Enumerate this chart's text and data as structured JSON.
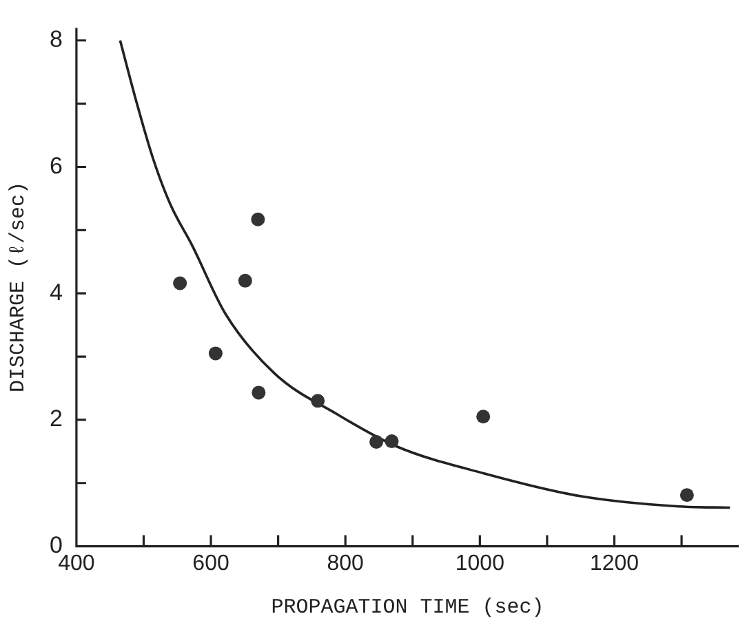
{
  "chart_data": {
    "type": "scatter",
    "xlabel": "PROPAGATION TIME (sec)",
    "ylabel": "DISCHARGE (ℓ/sec)",
    "xlim": [
      400,
      1385
    ],
    "ylim": [
      0,
      8.2
    ],
    "xticks": [
      400,
      {
        "value": 500,
        "label": null
      },
      600,
      {
        "value": 700,
        "label": null
      },
      800,
      {
        "value": 900,
        "label": null
      },
      1000,
      {
        "value": 1100,
        "label": null
      },
      1200,
      {
        "value": 1300,
        "label": null
      }
    ],
    "yticks": [
      0,
      {
        "value": 1,
        "label": null
      },
      2,
      {
        "value": 3,
        "label": null
      },
      4,
      {
        "value": 5,
        "label": null
      },
      6,
      {
        "value": 7,
        "label": null
      },
      8
    ],
    "series": [
      {
        "color": "#333333",
        "marker": "circle",
        "x": [
          554,
          607,
          651,
          670,
          671,
          759,
          846,
          869,
          1005,
          1308
        ],
        "values": [
          4.16,
          3.05,
          4.2,
          5.17,
          2.43,
          2.3,
          1.65,
          1.66,
          2.05,
          0.81
        ]
      },
      {
        "type": "line",
        "color": "#222222",
        "marker": "none",
        "x": [
          465,
          490,
          514,
          540,
          572,
          622,
          695,
          789,
          876,
          1007,
          1151,
          1296,
          1372
        ],
        "values": [
          8.0,
          7.0,
          6.13,
          5.4,
          4.76,
          3.67,
          2.73,
          2.08,
          1.58,
          1.15,
          0.79,
          0.63,
          0.61
        ]
      }
    ]
  }
}
